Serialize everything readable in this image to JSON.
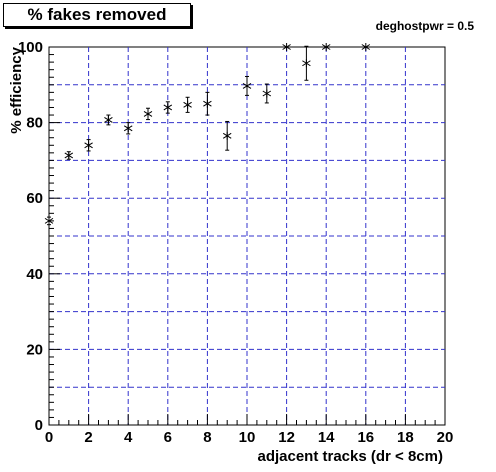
{
  "title_box": {
    "text": "% fakes removed"
  },
  "annotation": {
    "text": "deghostpwr = 0.5"
  },
  "chart_data": {
    "type": "scatter",
    "title": "% fakes removed",
    "xlabel": "adjacent tracks (dr < 8cm)",
    "ylabel": "% efficiency",
    "xlim": [
      0,
      20
    ],
    "ylim": [
      0,
      100
    ],
    "xticks": [
      "0",
      "2",
      "4",
      "6",
      "8",
      "10",
      "12",
      "14",
      "16",
      "18",
      "20"
    ],
    "yticks": [
      "0",
      "20",
      "40",
      "60",
      "80",
      "100"
    ],
    "grid": true,
    "marker": "asterisk",
    "colors": {
      "grid": "#3333cc",
      "marker": "#000000",
      "axis": "#000000"
    },
    "points": [
      {
        "x": 0,
        "y": 54,
        "err": 1.0
      },
      {
        "x": 1,
        "y": 71.3,
        "err": 1.0
      },
      {
        "x": 2,
        "y": 74,
        "err": 1.5
      },
      {
        "x": 3,
        "y": 80.7,
        "err": 1.3
      },
      {
        "x": 4,
        "y": 78.5,
        "err": 1.5
      },
      {
        "x": 5,
        "y": 82.3,
        "err": 1.5
      },
      {
        "x": 6,
        "y": 84,
        "err": 1.5
      },
      {
        "x": 7,
        "y": 84.7,
        "err": 2.0
      },
      {
        "x": 8,
        "y": 85,
        "err": 3.0
      },
      {
        "x": 9,
        "y": 76.5,
        "err": 3.8
      },
      {
        "x": 10,
        "y": 89.7,
        "err": 2.5
      },
      {
        "x": 11,
        "y": 87.7,
        "err": 2.5
      },
      {
        "x": 12,
        "y": 100,
        "err": 0
      },
      {
        "x": 13,
        "y": 95.7,
        "err": 4.5
      },
      {
        "x": 14,
        "y": 100,
        "err": 0
      },
      {
        "x": 16,
        "y": 100,
        "err": 0
      }
    ]
  }
}
